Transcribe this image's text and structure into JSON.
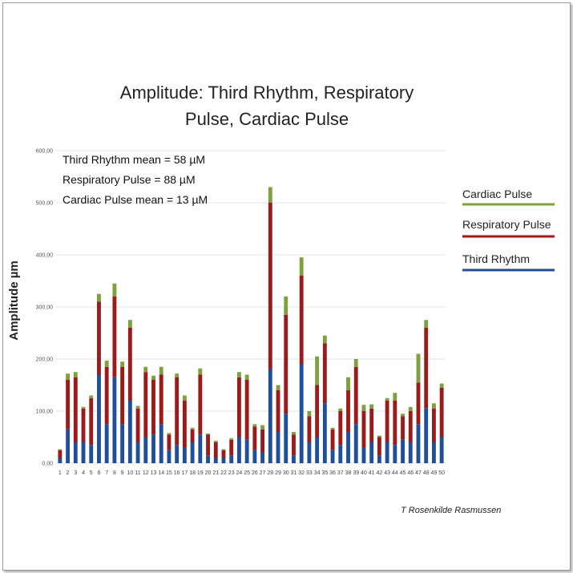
{
  "chart_data": {
    "type": "bar",
    "stacked": true,
    "title_lines": [
      "Amplitude: Third Rhythm, Respiratory",
      "Pulse, Cardiac Pulse"
    ],
    "ylabel": "Amplitude µm",
    "xlabel": "",
    "ylim": [
      0,
      600
    ],
    "yticks": [
      "0,00",
      "100,00",
      "200,00",
      "300,00",
      "400,00",
      "500,00",
      "600,00"
    ],
    "grid": true,
    "legend_position": "right",
    "categories": [
      "1",
      "2",
      "3",
      "4",
      "5",
      "6",
      "7",
      "8",
      "9",
      "10",
      "11",
      "12",
      "13",
      "14",
      "15",
      "16",
      "17",
      "18",
      "19",
      "20",
      "21",
      "22",
      "23",
      "24",
      "25",
      "26",
      "27",
      "28",
      "29",
      "30",
      "31",
      "32",
      "33",
      "34",
      "35",
      "36",
      "37",
      "38",
      "39",
      "40",
      "41",
      "42",
      "43",
      "44",
      "45",
      "46",
      "47",
      "48",
      "49",
      "50"
    ],
    "series": [
      {
        "name": "Third Rhythm",
        "color": "#1f4e9c",
        "values": [
          10,
          65,
          40,
          40,
          35,
          170,
          75,
          165,
          75,
          120,
          40,
          50,
          55,
          75,
          25,
          35,
          30,
          40,
          55,
          15,
          10,
          10,
          15,
          50,
          45,
          25,
          20,
          180,
          60,
          95,
          15,
          190,
          40,
          50,
          115,
          25,
          35,
          60,
          75,
          30,
          40,
          15,
          40,
          35,
          45,
          40,
          75,
          105,
          40,
          50
        ]
      },
      {
        "name": "Respiratory Pulse",
        "color": "#9b1b1b",
        "values": [
          15,
          95,
          125,
          65,
          90,
          140,
          110,
          155,
          110,
          140,
          65,
          125,
          105,
          95,
          30,
          130,
          90,
          25,
          115,
          40,
          30,
          15,
          30,
          115,
          115,
          45,
          45,
          320,
          80,
          190,
          40,
          170,
          50,
          100,
          115,
          40,
          65,
          80,
          110,
          70,
          65,
          35,
          80,
          85,
          45,
          60,
          80,
          155,
          65,
          95
        ]
      },
      {
        "name": "Cardiac Pulse",
        "color": "#7ea040",
        "values": [
          2,
          12,
          10,
          3,
          5,
          15,
          12,
          25,
          10,
          15,
          5,
          10,
          8,
          15,
          3,
          7,
          10,
          3,
          12,
          2,
          3,
          2,
          3,
          10,
          10,
          5,
          8,
          30,
          10,
          35,
          5,
          35,
          10,
          55,
          15,
          3,
          5,
          25,
          15,
          12,
          8,
          3,
          5,
          15,
          5,
          8,
          55,
          15,
          10,
          8
        ]
      }
    ],
    "legend_entries": [
      "Cardiac Pulse",
      "Respiratory Pulse",
      "Third Rhythm"
    ],
    "annotations": [
      "Third Rhythm mean = 58 µM",
      "Respiratory Pulse = 88 µM",
      "Cardiac Pulse mean = 13 µM"
    ],
    "credit": "T Rosenkilde Rasmussen"
  }
}
